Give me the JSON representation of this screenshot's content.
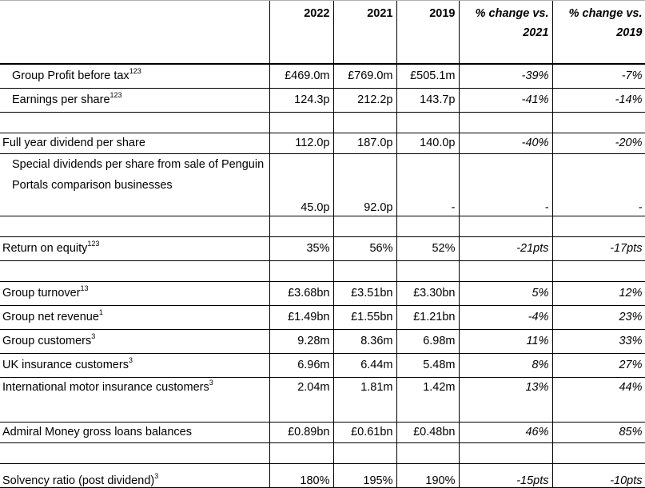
{
  "header": {
    "columns": [
      {
        "line1": "2022",
        "line2": ""
      },
      {
        "line1": "2021",
        "line2": ""
      },
      {
        "line1": "2019",
        "line2": ""
      },
      {
        "line1": "% change vs.",
        "line2": "2021"
      },
      {
        "line1": "% change vs.",
        "line2": "2019"
      }
    ]
  },
  "rows": [
    {
      "label": "Group Profit before tax",
      "sup": "123",
      "indent": true,
      "values": [
        "£469.0m",
        "£769.0m",
        "£505.1m",
        "-39%",
        "-7%"
      ]
    },
    {
      "label": "Earnings per share",
      "sup": "123",
      "indent": true,
      "values": [
        "124.3p",
        "212.2p",
        "143.7p",
        "-41%",
        "-14%"
      ]
    },
    {
      "label": "",
      "sup": "",
      "indent": false,
      "values": [
        "",
        "",
        "",
        "",
        ""
      ]
    },
    {
      "label": "Full year dividend per share",
      "sup": "",
      "indent": false,
      "values": [
        "112.0p",
        "187.0p",
        "140.0p",
        "-40%",
        "-20%"
      ]
    },
    {
      "label": "Special dividends per share from sale of Penguin Portals comparison businesses",
      "sup": "",
      "indent": true,
      "values": [
        "45.0p",
        "92.0p",
        "-",
        "-",
        "-"
      ]
    },
    {
      "label": "",
      "sup": "",
      "indent": false,
      "values": [
        "",
        "",
        "",
        "",
        ""
      ]
    },
    {
      "label": "Return on equity",
      "sup": "123",
      "indent": false,
      "values": [
        "35%",
        "56%",
        "52%",
        "-21pts",
        "-17pts"
      ]
    },
    {
      "label": "",
      "sup": "",
      "indent": false,
      "values": [
        "",
        "",
        "",
        "",
        ""
      ]
    },
    {
      "label": "Group turnover",
      "sup": "13",
      "indent": false,
      "values": [
        "£3.68bn",
        "£3.51bn",
        "£3.30bn",
        "5%",
        "12%"
      ]
    },
    {
      "label": "Group net revenue",
      "sup": "1",
      "indent": false,
      "values": [
        "£1.49bn",
        "£1.55bn",
        "£1.21bn",
        "-4%",
        "23%"
      ]
    },
    {
      "label": "Group customers",
      "sup": "3",
      "indent": false,
      "values": [
        "9.28m",
        "8.36m",
        "6.98m",
        "11%",
        "33%"
      ]
    },
    {
      "label": "UK insurance customers",
      "sup": "3",
      "indent": false,
      "values": [
        "6.96m",
        "6.44m",
        "5.48m",
        "8%",
        "27%"
      ]
    },
    {
      "label": "International motor insurance customers",
      "sup": "3",
      "indent": false,
      "values": [
        "2.04m",
        "1.81m",
        "1.42m",
        "13%",
        "44%"
      ]
    },
    {
      "label": "Admiral Money gross loans balances",
      "sup": "",
      "indent": false,
      "values": [
        "£0.89bn",
        "£0.61bn",
        "£0.48bn",
        "46%",
        "85%"
      ]
    },
    {
      "label": "",
      "sup": "",
      "indent": false,
      "values": [
        "",
        "",
        "",
        "",
        ""
      ]
    },
    {
      "label": "Solvency ratio (post dividend)",
      "sup": "3",
      "indent": false,
      "values": [
        "180%",
        "195%",
        "190%",
        "-15pts",
        "-10pts"
      ]
    }
  ]
}
